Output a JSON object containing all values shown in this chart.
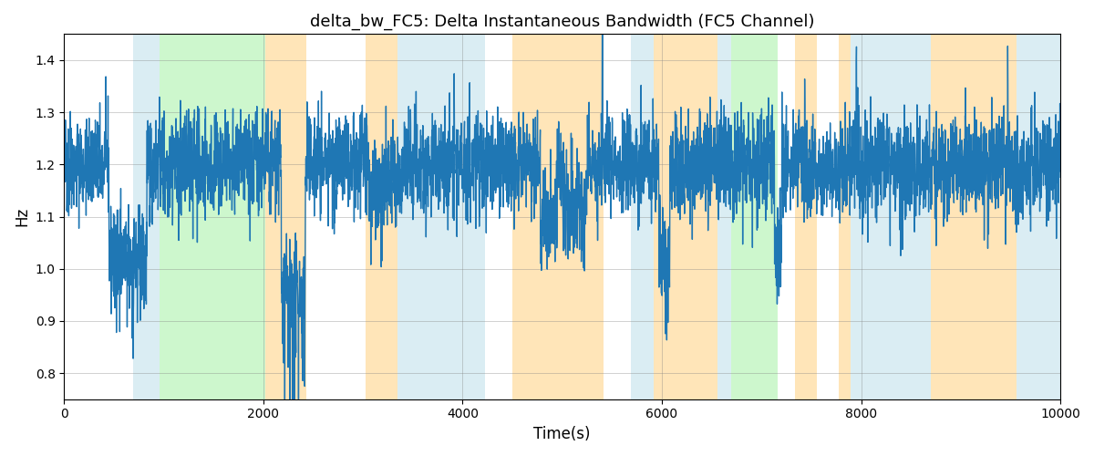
{
  "title": "delta_bw_FC5: Delta Instantaneous Bandwidth (FC5 Channel)",
  "xlabel": "Time(s)",
  "ylabel": "Hz",
  "xlim": [
    0,
    10000
  ],
  "ylim": [
    0.75,
    1.45
  ],
  "yticks": [
    0.8,
    0.9,
    1.0,
    1.1,
    1.2,
    1.3,
    1.4
  ],
  "xticks": [
    0,
    2000,
    4000,
    6000,
    8000,
    10000
  ],
  "line_color": "#1f77b4",
  "line_width": 1.0,
  "bg_regions": [
    {
      "xmin": 690,
      "xmax": 960,
      "color": "#add8e6",
      "alpha": 0.45
    },
    {
      "xmin": 960,
      "xmax": 2020,
      "color": "#90ee90",
      "alpha": 0.45
    },
    {
      "xmin": 2020,
      "xmax": 2430,
      "color": "#ffa500",
      "alpha": 0.28
    },
    {
      "xmin": 3025,
      "xmax": 3350,
      "color": "#ffa500",
      "alpha": 0.28
    },
    {
      "xmin": 3350,
      "xmax": 4220,
      "color": "#add8e6",
      "alpha": 0.45
    },
    {
      "xmin": 4495,
      "xmax": 5410,
      "color": "#ffa500",
      "alpha": 0.28
    },
    {
      "xmin": 5690,
      "xmax": 5920,
      "color": "#add8e6",
      "alpha": 0.45
    },
    {
      "xmin": 5920,
      "xmax": 6560,
      "color": "#ffa500",
      "alpha": 0.28
    },
    {
      "xmin": 6560,
      "xmax": 6700,
      "color": "#add8e6",
      "alpha": 0.45
    },
    {
      "xmin": 6700,
      "xmax": 7160,
      "color": "#90ee90",
      "alpha": 0.45
    },
    {
      "xmin": 7340,
      "xmax": 7560,
      "color": "#ffa500",
      "alpha": 0.28
    },
    {
      "xmin": 7780,
      "xmax": 7890,
      "color": "#ffa500",
      "alpha": 0.28
    },
    {
      "xmin": 7890,
      "xmax": 8700,
      "color": "#add8e6",
      "alpha": 0.45
    },
    {
      "xmin": 8700,
      "xmax": 9560,
      "color": "#ffa500",
      "alpha": 0.28
    },
    {
      "xmin": 9560,
      "xmax": 10000,
      "color": "#add8e6",
      "alpha": 0.45
    }
  ],
  "seed": 42,
  "n_points": 5000,
  "base_mean": 1.2,
  "noise_std": 0.045
}
